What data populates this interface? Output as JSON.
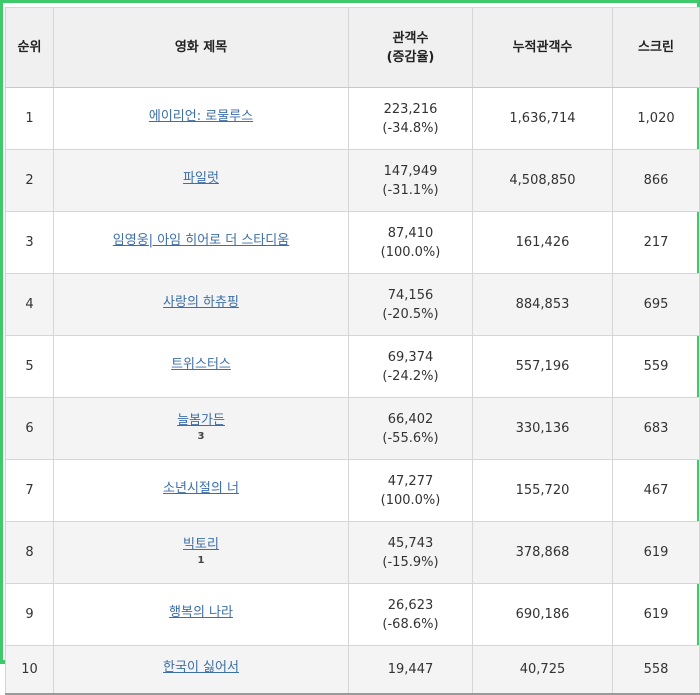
{
  "headers": {
    "rank": "순위",
    "title": "영화 제목",
    "audience": "관객수",
    "audience_sub": "(증감율)",
    "cumulative": "누적관객수",
    "screens": "스크린"
  },
  "rows": [
    {
      "rank": "1",
      "title": "에이리언: 로물루스",
      "note": "",
      "audience": "223,216",
      "change": "(-34.8%)",
      "cumulative": "1,636,714",
      "screens": "1,020"
    },
    {
      "rank": "2",
      "title": "파일럿",
      "note": "",
      "audience": "147,949",
      "change": "(-31.1%)",
      "cumulative": "4,508,850",
      "screens": "866"
    },
    {
      "rank": "3",
      "title": "임영웅| 아임 히어로 더 스타디움",
      "note": "",
      "audience": "87,410",
      "change": "(100.0%)",
      "cumulative": "161,426",
      "screens": "217"
    },
    {
      "rank": "4",
      "title": "사랑의 하츄핑",
      "note": "",
      "audience": "74,156",
      "change": "(-20.5%)",
      "cumulative": "884,853",
      "screens": "695"
    },
    {
      "rank": "5",
      "title": "트위스터스",
      "note": "",
      "audience": "69,374",
      "change": "(-24.2%)",
      "cumulative": "557,196",
      "screens": "559"
    },
    {
      "rank": "6",
      "title": "늘봄가든",
      "note": "3",
      "audience": "66,402",
      "change": "(-55.6%)",
      "cumulative": "330,136",
      "screens": "683"
    },
    {
      "rank": "7",
      "title": "소년시절의 너",
      "note": "",
      "audience": "47,277",
      "change": "(100.0%)",
      "cumulative": "155,720",
      "screens": "467"
    },
    {
      "rank": "8",
      "title": "빅토리",
      "note": "1",
      "audience": "45,743",
      "change": "(-15.9%)",
      "cumulative": "378,868",
      "screens": "619"
    },
    {
      "rank": "9",
      "title": "행복의 나라",
      "note": "",
      "audience": "26,623",
      "change": "(-68.6%)",
      "cumulative": "690,186",
      "screens": "619"
    },
    {
      "rank": "10",
      "title": "한국이 싫어서",
      "note": "",
      "audience": "19,447",
      "change": "",
      "cumulative": "40,725",
      "screens": "558"
    }
  ]
}
